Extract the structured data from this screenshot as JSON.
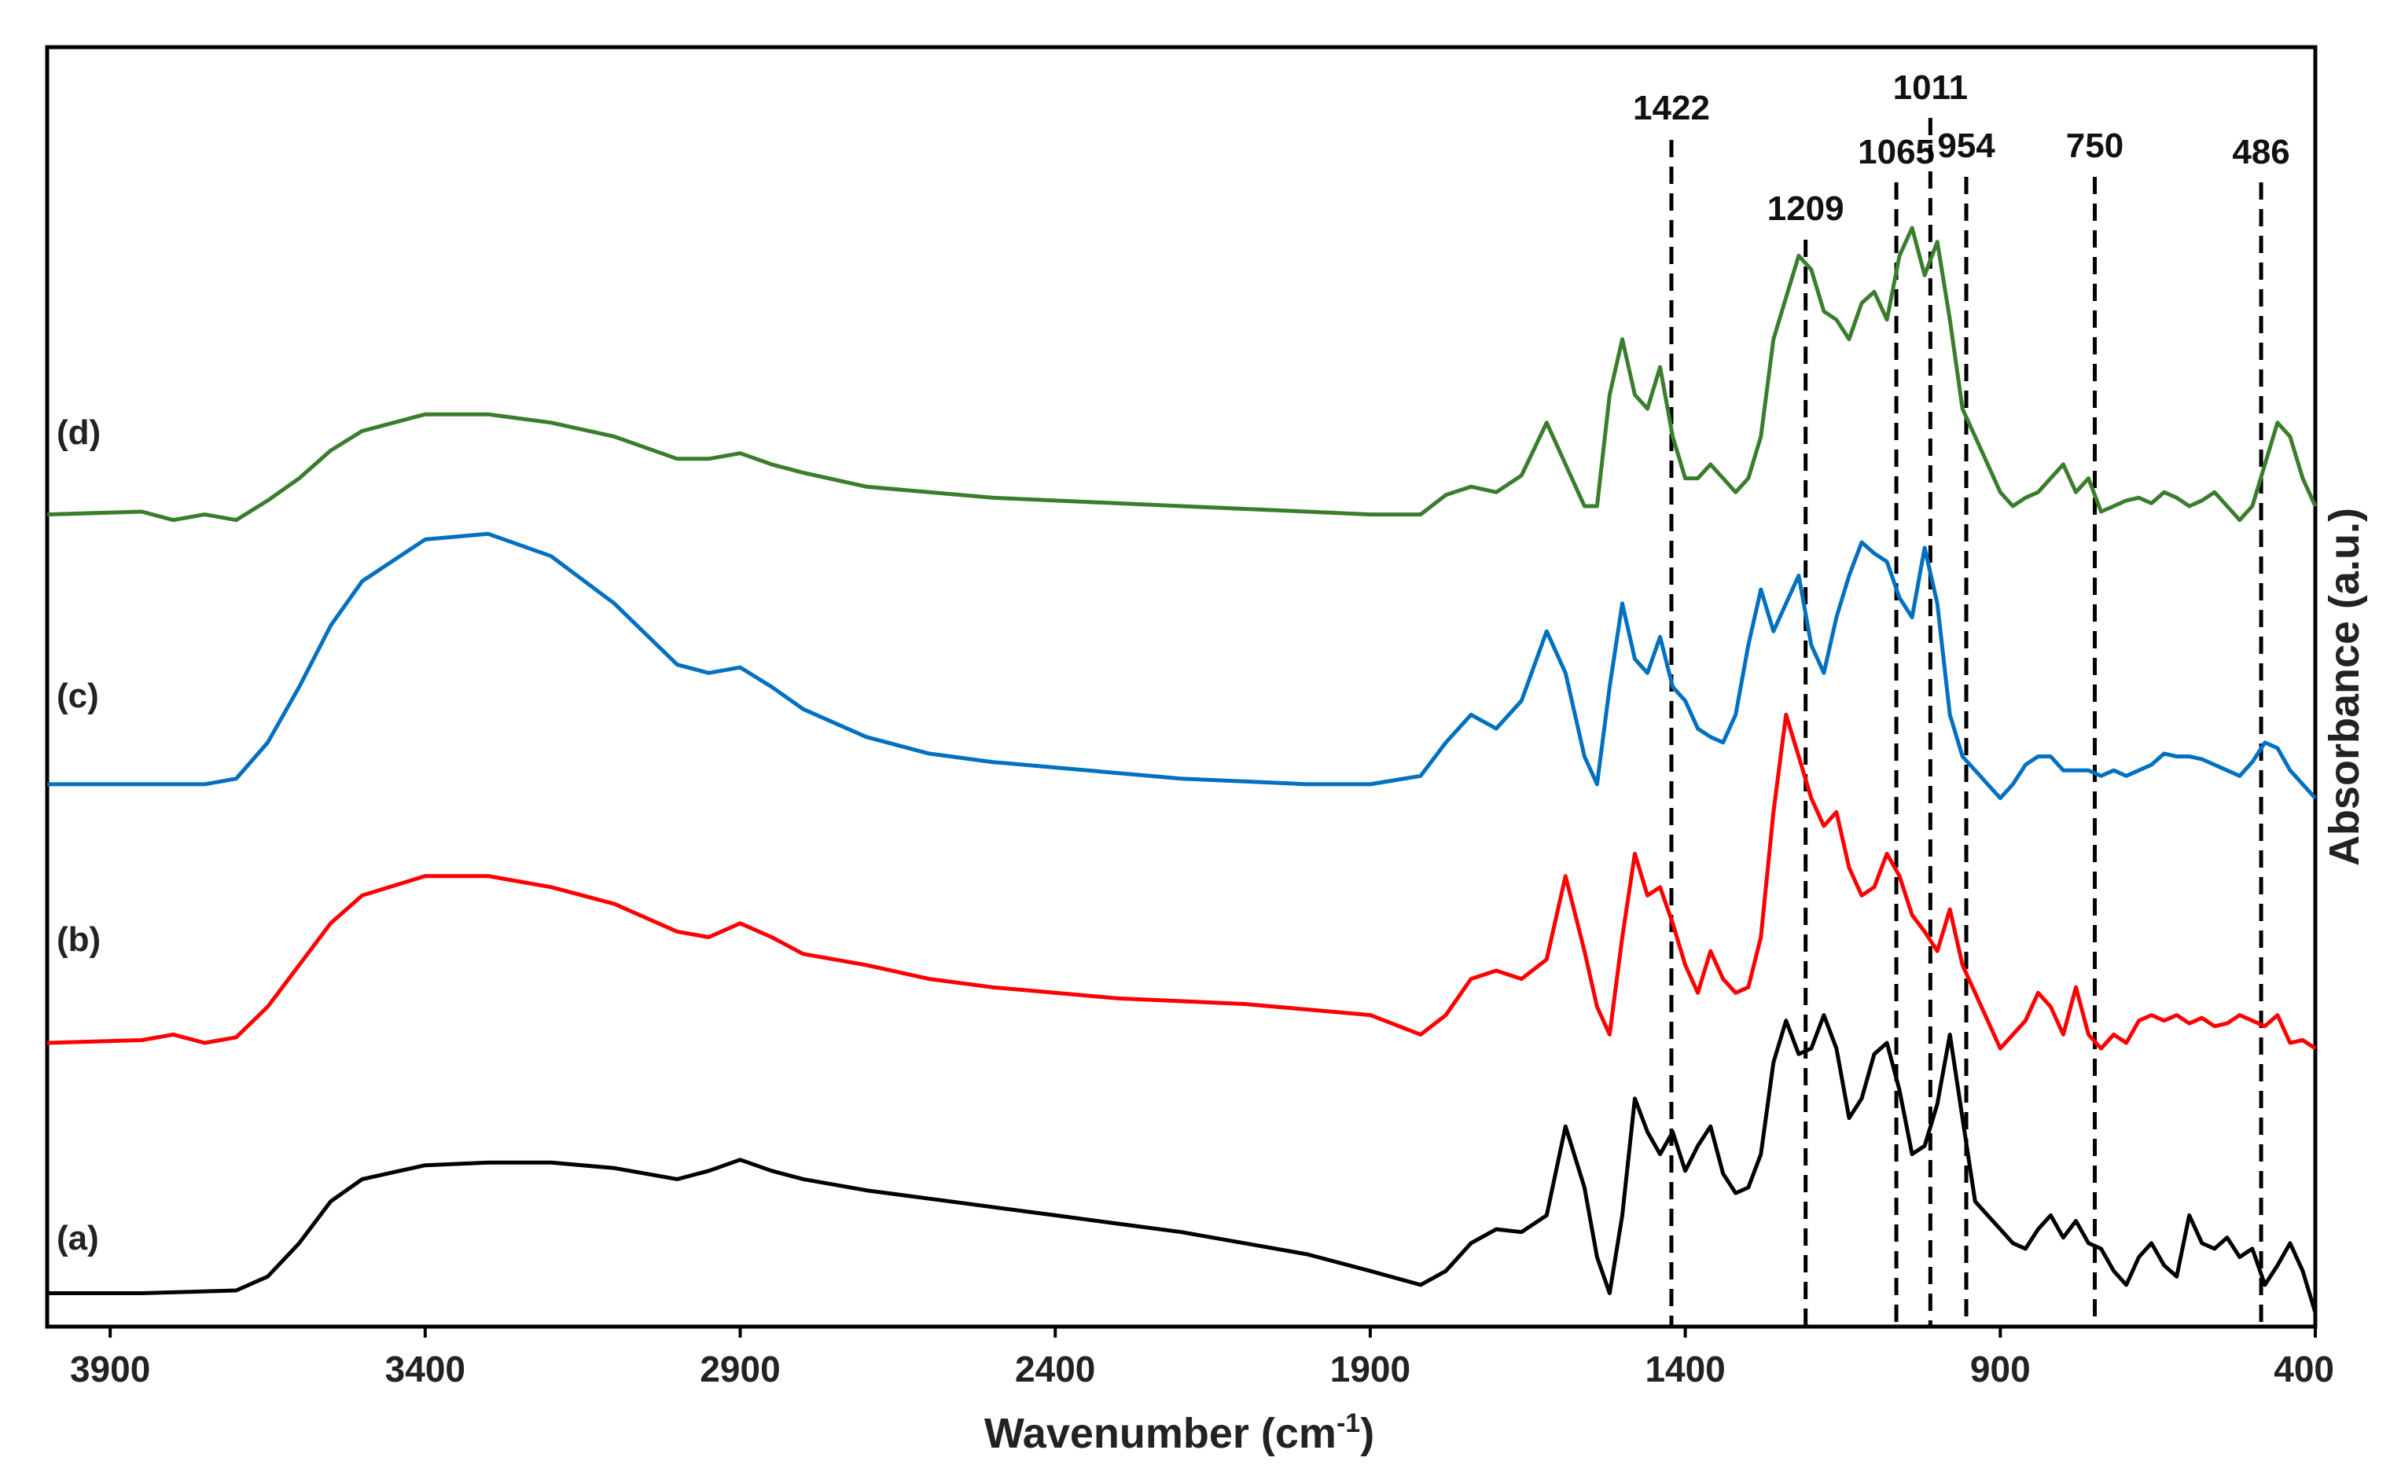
{
  "chart_data": {
    "type": "line",
    "title": "",
    "xlabel": "Wavenumber (cm",
    "xlabel_sup": "-1",
    "xlabel_end": ")",
    "ylabel": "Absorbance (a.u.)",
    "xlim": [
      4000,
      400
    ],
    "ylim": [
      0,
      4.6
    ],
    "x_reversed": true,
    "grid": false,
    "x_ticks": [
      3900,
      3400,
      2900,
      2400,
      1900,
      1400,
      900,
      400
    ],
    "reference_lines": [
      1422,
      1209,
      1065,
      1011,
      954,
      750,
      486
    ],
    "series": [
      {
        "name": "(a)",
        "color": "#000000",
        "x": [
          4000,
          3850,
          3700,
          3650,
          3600,
          3550,
          3500,
          3400,
          3300,
          3200,
          3100,
          3000,
          2950,
          2900,
          2850,
          2800,
          2700,
          2600,
          2500,
          2400,
          2300,
          2200,
          2100,
          2000,
          1900,
          1820,
          1780,
          1740,
          1700,
          1660,
          1620,
          1590,
          1560,
          1540,
          1520,
          1500,
          1480,
          1460,
          1440,
          1420,
          1400,
          1380,
          1360,
          1340,
          1320,
          1300,
          1280,
          1260,
          1240,
          1220,
          1200,
          1180,
          1160,
          1140,
          1120,
          1100,
          1080,
          1060,
          1040,
          1020,
          1000,
          980,
          960,
          940,
          920,
          900,
          880,
          860,
          840,
          820,
          800,
          780,
          760,
          740,
          720,
          700,
          680,
          660,
          640,
          620,
          600,
          580,
          560,
          540,
          520,
          500,
          480,
          460,
          440,
          420,
          400
        ],
        "y": [
          0.12,
          0.12,
          0.13,
          0.18,
          0.3,
          0.45,
          0.53,
          0.58,
          0.59,
          0.59,
          0.57,
          0.53,
          0.56,
          0.6,
          0.56,
          0.53,
          0.49,
          0.46,
          0.43,
          0.4,
          0.37,
          0.34,
          0.3,
          0.26,
          0.2,
          0.15,
          0.2,
          0.3,
          0.35,
          0.34,
          0.4,
          0.72,
          0.5,
          0.25,
          0.12,
          0.4,
          0.82,
          0.7,
          0.62,
          0.7,
          0.56,
          0.65,
          0.72,
          0.55,
          0.48,
          0.5,
          0.62,
          0.95,
          1.1,
          0.98,
          1.0,
          1.12,
          1.0,
          0.75,
          0.82,
          0.98,
          1.02,
          0.85,
          0.62,
          0.65,
          0.8,
          1.05,
          0.75,
          0.45,
          0.4,
          0.35,
          0.3,
          0.28,
          0.35,
          0.4,
          0.32,
          0.38,
          0.3,
          0.28,
          0.2,
          0.15,
          0.25,
          0.3,
          0.22,
          0.18,
          0.4,
          0.3,
          0.28,
          0.32,
          0.25,
          0.28,
          0.15,
          0.22,
          0.3,
          0.2,
          0.05
        ]
      },
      {
        "name": "(b)",
        "color": "#ff0000",
        "x": [
          4000,
          3850,
          3800,
          3750,
          3700,
          3650,
          3600,
          3550,
          3500,
          3400,
          3300,
          3200,
          3100,
          3000,
          2950,
          2900,
          2850,
          2800,
          2700,
          2600,
          2500,
          2400,
          2300,
          2200,
          2100,
          2000,
          1900,
          1820,
          1780,
          1740,
          1700,
          1660,
          1620,
          1590,
          1560,
          1540,
          1520,
          1500,
          1480,
          1460,
          1440,
          1420,
          1400,
          1380,
          1360,
          1340,
          1320,
          1300,
          1280,
          1260,
          1240,
          1220,
          1200,
          1180,
          1160,
          1140,
          1120,
          1100,
          1080,
          1060,
          1040,
          1020,
          1000,
          980,
          960,
          940,
          920,
          900,
          880,
          860,
          840,
          820,
          800,
          780,
          760,
          740,
          720,
          700,
          680,
          660,
          640,
          620,
          600,
          580,
          560,
          540,
          520,
          500,
          480,
          460,
          440,
          420,
          400
        ],
        "y": [
          1.02,
          1.03,
          1.05,
          1.02,
          1.04,
          1.15,
          1.3,
          1.45,
          1.55,
          1.62,
          1.62,
          1.58,
          1.52,
          1.42,
          1.4,
          1.45,
          1.4,
          1.34,
          1.3,
          1.25,
          1.22,
          1.2,
          1.18,
          1.17,
          1.16,
          1.14,
          1.12,
          1.05,
          1.12,
          1.25,
          1.28,
          1.25,
          1.32,
          1.62,
          1.35,
          1.15,
          1.05,
          1.4,
          1.7,
          1.55,
          1.58,
          1.45,
          1.3,
          1.2,
          1.35,
          1.25,
          1.2,
          1.22,
          1.4,
          1.85,
          2.2,
          2.05,
          1.9,
          1.8,
          1.85,
          1.65,
          1.55,
          1.58,
          1.7,
          1.62,
          1.48,
          1.42,
          1.35,
          1.5,
          1.3,
          1.2,
          1.1,
          1.0,
          1.05,
          1.1,
          1.2,
          1.15,
          1.05,
          1.22,
          1.05,
          1.0,
          1.05,
          1.02,
          1.1,
          1.12,
          1.1,
          1.12,
          1.09,
          1.11,
          1.08,
          1.09,
          1.12,
          1.1,
          1.08,
          1.12,
          1.02,
          1.03,
          1.0
        ]
      },
      {
        "name": "(c)",
        "color": "#0070c0",
        "x": [
          4000,
          3850,
          3800,
          3750,
          3700,
          3650,
          3600,
          3550,
          3500,
          3400,
          3300,
          3200,
          3100,
          3000,
          2950,
          2900,
          2850,
          2800,
          2700,
          2600,
          2500,
          2400,
          2300,
          2200,
          2100,
          2000,
          1900,
          1820,
          1780,
          1740,
          1700,
          1660,
          1620,
          1590,
          1560,
          1540,
          1520,
          1500,
          1480,
          1460,
          1440,
          1420,
          1400,
          1380,
          1360,
          1340,
          1320,
          1300,
          1280,
          1260,
          1240,
          1220,
          1200,
          1180,
          1160,
          1140,
          1120,
          1100,
          1080,
          1060,
          1040,
          1020,
          1000,
          980,
          960,
          940,
          920,
          900,
          880,
          860,
          840,
          820,
          800,
          780,
          760,
          740,
          720,
          700,
          680,
          660,
          640,
          620,
          600,
          580,
          560,
          540,
          520,
          500,
          480,
          460,
          440,
          420,
          400
        ],
        "y": [
          1.95,
          1.95,
          1.95,
          1.95,
          1.97,
          2.1,
          2.3,
          2.52,
          2.68,
          2.83,
          2.85,
          2.77,
          2.6,
          2.38,
          2.35,
          2.37,
          2.3,
          2.22,
          2.12,
          2.06,
          2.03,
          2.01,
          1.99,
          1.97,
          1.96,
          1.95,
          1.95,
          1.98,
          2.1,
          2.2,
          2.15,
          2.25,
          2.5,
          2.35,
          2.05,
          1.95,
          2.3,
          2.6,
          2.4,
          2.35,
          2.48,
          2.3,
          2.25,
          2.15,
          2.12,
          2.1,
          2.2,
          2.45,
          2.65,
          2.5,
          2.6,
          2.7,
          2.45,
          2.35,
          2.55,
          2.7,
          2.82,
          2.78,
          2.75,
          2.62,
          2.55,
          2.8,
          2.6,
          2.2,
          2.05,
          2.0,
          1.95,
          1.9,
          1.95,
          2.02,
          2.05,
          2.05,
          2.0,
          2.0,
          2.0,
          1.98,
          2.0,
          1.98,
          2.0,
          2.02,
          2.06,
          2.05,
          2.05,
          2.04,
          2.02,
          2.0,
          1.98,
          2.03,
          2.1,
          2.08,
          2.0,
          1.95,
          1.9
        ]
      },
      {
        "name": "(d)",
        "color": "#3a7d2c",
        "x": [
          4000,
          3850,
          3800,
          3750,
          3700,
          3650,
          3600,
          3550,
          3500,
          3400,
          3300,
          3200,
          3100,
          3000,
          2950,
          2900,
          2850,
          2800,
          2700,
          2600,
          2500,
          2400,
          2300,
          2200,
          2100,
          2000,
          1900,
          1820,
          1780,
          1740,
          1700,
          1660,
          1620,
          1590,
          1560,
          1540,
          1520,
          1500,
          1480,
          1460,
          1440,
          1420,
          1400,
          1380,
          1360,
          1340,
          1320,
          1300,
          1280,
          1260,
          1240,
          1220,
          1200,
          1180,
          1160,
          1140,
          1120,
          1100,
          1080,
          1060,
          1040,
          1020,
          1000,
          980,
          960,
          940,
          920,
          900,
          880,
          860,
          840,
          820,
          800,
          780,
          760,
          740,
          720,
          700,
          680,
          660,
          640,
          620,
          600,
          580,
          560,
          540,
          520,
          500,
          480,
          460,
          440,
          420,
          400
        ],
        "y": [
          2.92,
          2.93,
          2.9,
          2.92,
          2.9,
          2.97,
          3.05,
          3.15,
          3.22,
          3.28,
          3.28,
          3.25,
          3.2,
          3.12,
          3.12,
          3.14,
          3.1,
          3.07,
          3.02,
          3.0,
          2.98,
          2.97,
          2.96,
          2.95,
          2.94,
          2.93,
          2.92,
          2.92,
          2.99,
          3.02,
          3.0,
          3.06,
          3.25,
          3.1,
          2.95,
          2.95,
          3.35,
          3.55,
          3.35,
          3.3,
          3.45,
          3.2,
          3.05,
          3.05,
          3.1,
          3.05,
          3.0,
          3.05,
          3.2,
          3.55,
          3.7,
          3.85,
          3.8,
          3.65,
          3.62,
          3.55,
          3.68,
          3.72,
          3.62,
          3.85,
          3.95,
          3.78,
          3.9,
          3.62,
          3.3,
          3.2,
          3.1,
          3.0,
          2.95,
          2.98,
          3.0,
          3.05,
          3.1,
          3.0,
          3.05,
          2.93,
          2.95,
          2.97,
          2.98,
          2.96,
          3.0,
          2.98,
          2.95,
          2.97,
          3.0,
          2.95,
          2.9,
          2.95,
          3.1,
          3.25,
          3.2,
          3.05,
          2.95
        ]
      }
    ]
  }
}
